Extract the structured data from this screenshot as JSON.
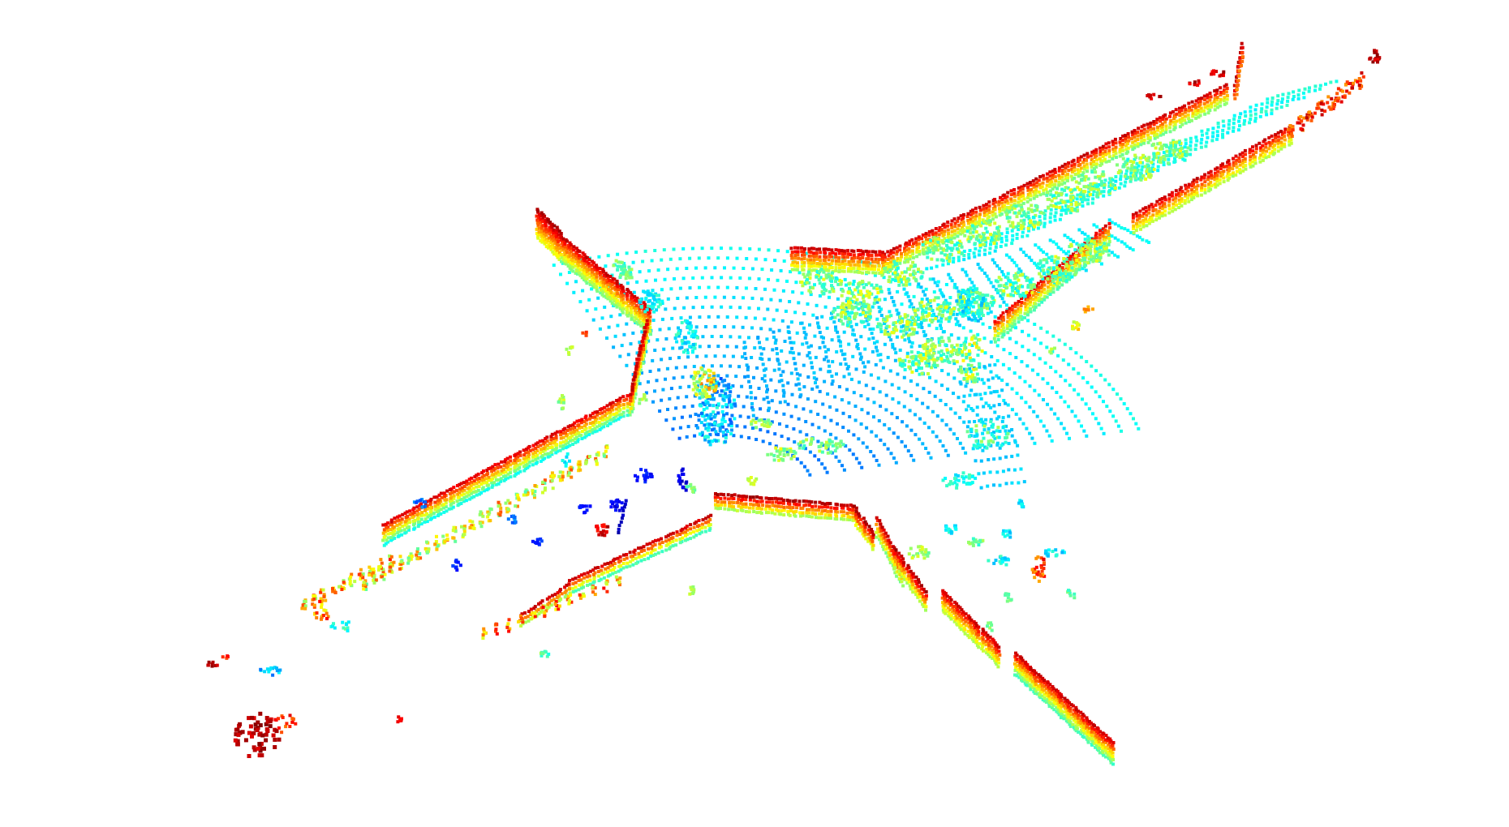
{
  "scene": {
    "background": "#ffffff",
    "render": "lidar-point-cloud",
    "colormap": "jet",
    "colormap_stops": [
      "#00007f",
      "#0000ff",
      "#007fff",
      "#00ffff",
      "#7fff7f",
      "#ffff00",
      "#ff7f00",
      "#ff0000",
      "#7f0000"
    ]
  }
}
